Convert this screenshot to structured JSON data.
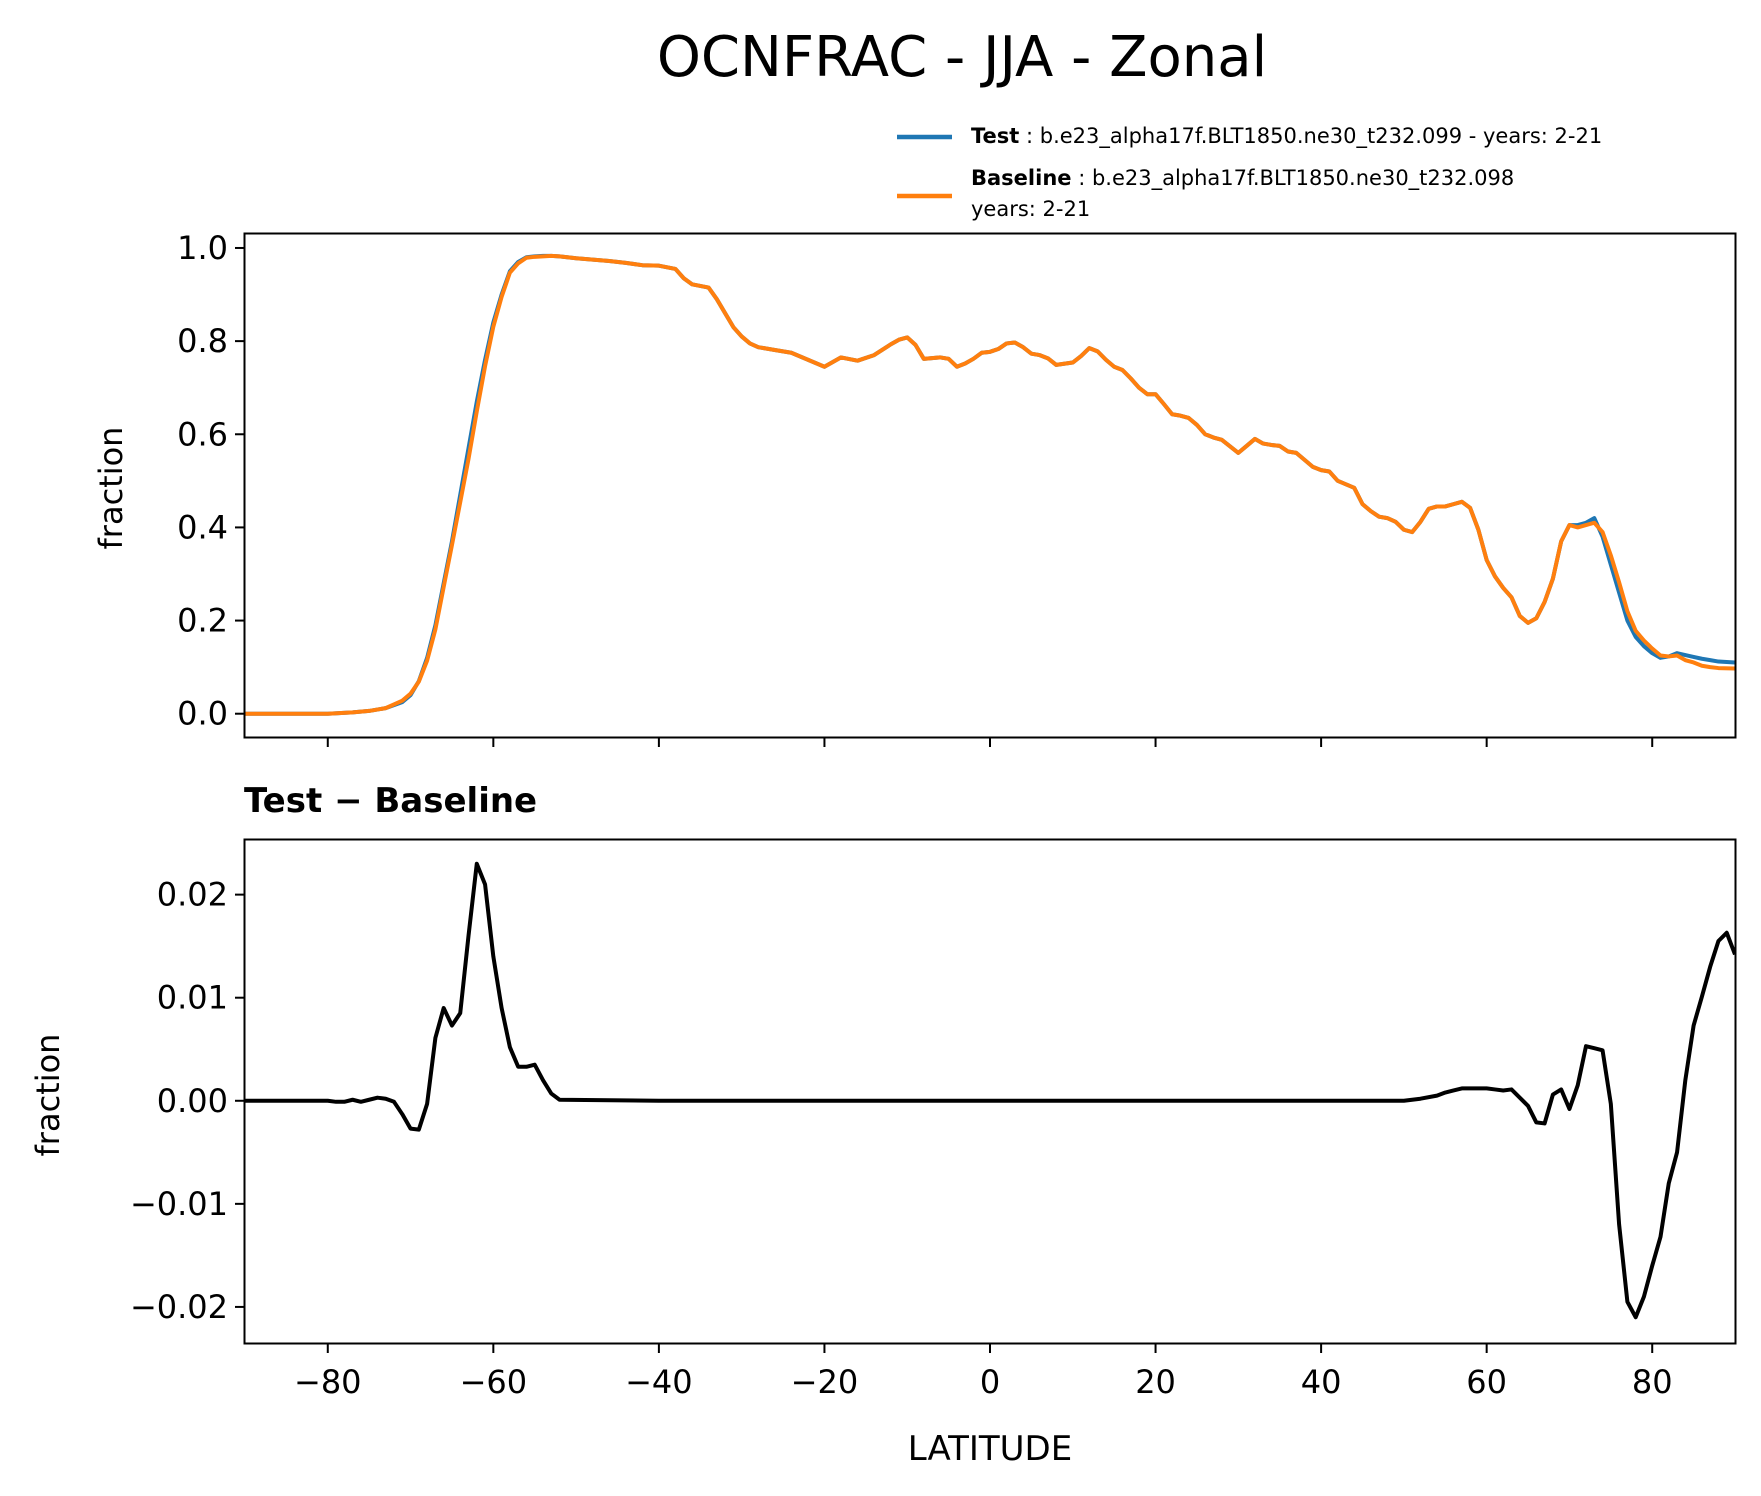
{
  "figure": {
    "title": "OCNFRAC - JJA - Zonal"
  },
  "legend": {
    "test_bold": "Test",
    "test_text": " : b.e23_alpha17f.BLT1850.ne30_t232.099 - years: 2-21",
    "baseline_bold": "Baseline",
    "baseline_text": " : b.e23_alpha17f.BLT1850.ne30_t232.098",
    "baseline_text2": "years: 2-21",
    "placement": "top-right, above upper panel"
  },
  "colors": {
    "test": "#1f77b4",
    "baseline": "#ff7f0e",
    "diff": "#000000"
  },
  "chart_data": [
    {
      "type": "line",
      "title": "",
      "xlabel": "",
      "ylabel": "fraction",
      "xlim": [
        -90,
        90
      ],
      "ylim": [
        -0.05,
        1.03
      ],
      "yticks": [
        0.0,
        0.2,
        0.4,
        0.6,
        0.8,
        1.0
      ],
      "ytick_labels": [
        "0.0",
        "0.2",
        "0.4",
        "0.6",
        "0.8",
        "1.0"
      ],
      "xticks": [
        -80,
        -60,
        -40,
        -20,
        0,
        20,
        40,
        60,
        80
      ],
      "xtick_labels": [
        "",
        "",
        "",
        "",
        "",
        "",
        "",
        "",
        ""
      ],
      "x": [
        -90,
        -85,
        -80,
        -77,
        -75,
        -73,
        -71,
        -70,
        -69,
        -68,
        -67,
        -66,
        -65,
        -64,
        -63,
        -62,
        -61,
        -60,
        -59,
        -58,
        -57,
        -56,
        -55,
        -54,
        -53,
        -52,
        -50,
        -48,
        -46,
        -44,
        -42,
        -40,
        -38,
        -37,
        -36,
        -34,
        -33,
        -32,
        -31,
        -30,
        -29,
        -28,
        -26,
        -24,
        -22,
        -20,
        -18,
        -16,
        -14,
        -12,
        -11,
        -10,
        -9,
        -8,
        -6,
        -5,
        -4,
        -3,
        -2,
        -1,
        0,
        1,
        2,
        3,
        4,
        5,
        6,
        7,
        8,
        10,
        11,
        12,
        13,
        14,
        15,
        16,
        17,
        18,
        19,
        20,
        21,
        22,
        23,
        24,
        25,
        26,
        27,
        28,
        30,
        31,
        32,
        33,
        34,
        35,
        36,
        37,
        38,
        39,
        40,
        41,
        42,
        44,
        45,
        46,
        47,
        48,
        49,
        50,
        51,
        52,
        53,
        54,
        55,
        56,
        57,
        58,
        59,
        60,
        61,
        62,
        63,
        64,
        65,
        66,
        67,
        68,
        69,
        70,
        71,
        72,
        73,
        74,
        75,
        76,
        77,
        78,
        79,
        80,
        81,
        82,
        83,
        84,
        85,
        86,
        87,
        88,
        90
      ],
      "series": [
        {
          "name": "Test",
          "values": [
            0.0,
            0.0,
            0.0,
            0.003,
            0.006,
            0.012,
            0.025,
            0.04,
            0.07,
            0.12,
            0.19,
            0.28,
            0.37,
            0.47,
            0.57,
            0.67,
            0.76,
            0.84,
            0.9,
            0.95,
            0.97,
            0.98,
            0.982,
            0.983,
            0.983,
            0.982,
            0.978,
            0.975,
            0.972,
            0.968,
            0.963,
            0.962,
            0.955,
            0.935,
            0.922,
            0.915,
            0.89,
            0.86,
            0.83,
            0.81,
            0.795,
            0.787,
            0.781,
            0.775,
            0.76,
            0.745,
            0.765,
            0.758,
            0.77,
            0.793,
            0.803,
            0.808,
            0.792,
            0.762,
            0.765,
            0.762,
            0.745,
            0.752,
            0.762,
            0.775,
            0.777,
            0.783,
            0.795,
            0.797,
            0.787,
            0.773,
            0.77,
            0.763,
            0.749,
            0.754,
            0.768,
            0.785,
            0.778,
            0.76,
            0.745,
            0.738,
            0.72,
            0.7,
            0.686,
            0.686,
            0.665,
            0.643,
            0.64,
            0.635,
            0.62,
            0.6,
            0.593,
            0.588,
            0.56,
            0.575,
            0.59,
            0.58,
            0.577,
            0.575,
            0.563,
            0.56,
            0.545,
            0.53,
            0.523,
            0.52,
            0.5,
            0.485,
            0.45,
            0.435,
            0.423,
            0.42,
            0.412,
            0.395,
            0.39,
            0.412,
            0.44,
            0.445,
            0.445,
            0.45,
            0.455,
            0.442,
            0.395,
            0.33,
            0.295,
            0.27,
            0.25,
            0.21,
            0.195,
            0.205,
            0.24,
            0.29,
            0.37,
            0.405,
            0.405,
            0.41,
            0.42,
            0.38,
            0.32,
            0.26,
            0.2,
            0.165,
            0.145,
            0.13,
            0.12,
            0.123,
            0.13,
            0.126,
            0.122,
            0.118,
            0.115,
            0.112,
            0.11
          ]
        },
        {
          "name": "Baseline",
          "values": [
            0.0,
            0.0,
            0.0,
            0.003,
            0.006,
            0.012,
            0.028,
            0.043,
            0.069,
            0.114,
            0.181,
            0.272,
            0.362,
            0.454,
            0.547,
            0.649,
            0.746,
            0.831,
            0.895,
            0.947,
            0.967,
            0.979,
            0.981,
            0.982,
            0.983,
            0.982,
            0.978,
            0.975,
            0.972,
            0.968,
            0.963,
            0.962,
            0.955,
            0.935,
            0.922,
            0.915,
            0.89,
            0.86,
            0.83,
            0.81,
            0.795,
            0.787,
            0.781,
            0.775,
            0.76,
            0.745,
            0.765,
            0.758,
            0.77,
            0.793,
            0.803,
            0.808,
            0.792,
            0.762,
            0.765,
            0.762,
            0.745,
            0.752,
            0.762,
            0.775,
            0.777,
            0.783,
            0.795,
            0.797,
            0.787,
            0.773,
            0.77,
            0.763,
            0.749,
            0.754,
            0.768,
            0.785,
            0.778,
            0.76,
            0.745,
            0.738,
            0.72,
            0.7,
            0.686,
            0.686,
            0.665,
            0.643,
            0.64,
            0.635,
            0.62,
            0.6,
            0.593,
            0.588,
            0.56,
            0.575,
            0.59,
            0.58,
            0.577,
            0.575,
            0.563,
            0.56,
            0.545,
            0.53,
            0.523,
            0.52,
            0.5,
            0.485,
            0.45,
            0.435,
            0.423,
            0.42,
            0.412,
            0.395,
            0.39,
            0.412,
            0.44,
            0.445,
            0.445,
            0.45,
            0.455,
            0.442,
            0.395,
            0.33,
            0.295,
            0.27,
            0.25,
            0.21,
            0.195,
            0.205,
            0.24,
            0.29,
            0.37,
            0.405,
            0.4,
            0.405,
            0.41,
            0.39,
            0.34,
            0.282,
            0.22,
            0.178,
            0.157,
            0.14,
            0.125,
            0.123,
            0.125,
            0.115,
            0.11,
            0.103,
            0.1,
            0.098,
            0.097
          ]
        }
      ]
    },
    {
      "type": "line",
      "title": "Test − Baseline",
      "xlabel": "LATITUDE",
      "ylabel": "fraction",
      "xlim": [
        -90,
        90
      ],
      "ylim": [
        -0.0235,
        0.0253
      ],
      "yticks": [
        -0.02,
        -0.01,
        0.0,
        0.01,
        0.02
      ],
      "ytick_labels": [
        "−0.02",
        "−0.01",
        "0.00",
        "0.01",
        "0.02"
      ],
      "xticks": [
        -80,
        -60,
        -40,
        -20,
        0,
        20,
        40,
        60,
        80
      ],
      "xtick_labels": [
        "−80",
        "−60",
        "−40",
        "−20",
        "0",
        "20",
        "40",
        "60",
        "80"
      ],
      "series": [
        {
          "name": "Test − Baseline",
          "x": [
            -90,
            -80,
            -79,
            -78,
            -77,
            -76,
            -75,
            -74,
            -73,
            -72,
            -71,
            -70,
            -69,
            -68,
            -67,
            -66,
            -65,
            -64,
            -63,
            -62,
            -61,
            -60,
            -59,
            -58,
            -57,
            -56,
            -55,
            -54,
            -53,
            -52,
            -40,
            -20,
            0,
            20,
            40,
            47,
            50,
            52,
            54,
            55,
            56,
            57,
            58,
            59,
            60,
            61,
            62,
            63,
            64,
            65,
            66,
            67,
            68,
            69,
            70,
            71,
            72,
            73,
            74,
            75,
            76,
            77,
            78,
            79,
            80,
            81,
            82,
            83,
            84,
            85,
            86,
            87,
            88,
            89,
            90
          ],
          "values": [
            0.0,
            0.0,
            -0.0001,
            -0.0001,
            0.0001,
            -0.0001,
            0.0001,
            0.0003,
            0.0002,
            -0.0001,
            -0.0013,
            -0.0027,
            -0.0028,
            -0.0003,
            0.0061,
            0.009,
            0.0073,
            0.0085,
            0.016,
            0.023,
            0.021,
            0.014,
            0.009,
            0.0052,
            0.0033,
            0.0033,
            0.0035,
            0.002,
            0.0007,
            0.0001,
            0.0,
            0.0,
            0.0,
            0.0,
            0.0,
            0.0,
            0.0,
            0.0002,
            0.0005,
            0.0008,
            0.001,
            0.0012,
            0.0012,
            0.0012,
            0.0012,
            0.0011,
            0.001,
            0.0011,
            0.0003,
            -0.0005,
            -0.0021,
            -0.0022,
            0.0006,
            0.0011,
            -0.0008,
            0.0015,
            0.0053,
            0.0051,
            0.0049,
            -0.0003,
            -0.012,
            -0.0195,
            -0.021,
            -0.019,
            -0.016,
            -0.0132,
            -0.008,
            -0.005,
            0.002,
            0.0073,
            0.0101,
            0.013,
            0.0155,
            0.0163,
            0.0142
          ]
        }
      ]
    }
  ]
}
